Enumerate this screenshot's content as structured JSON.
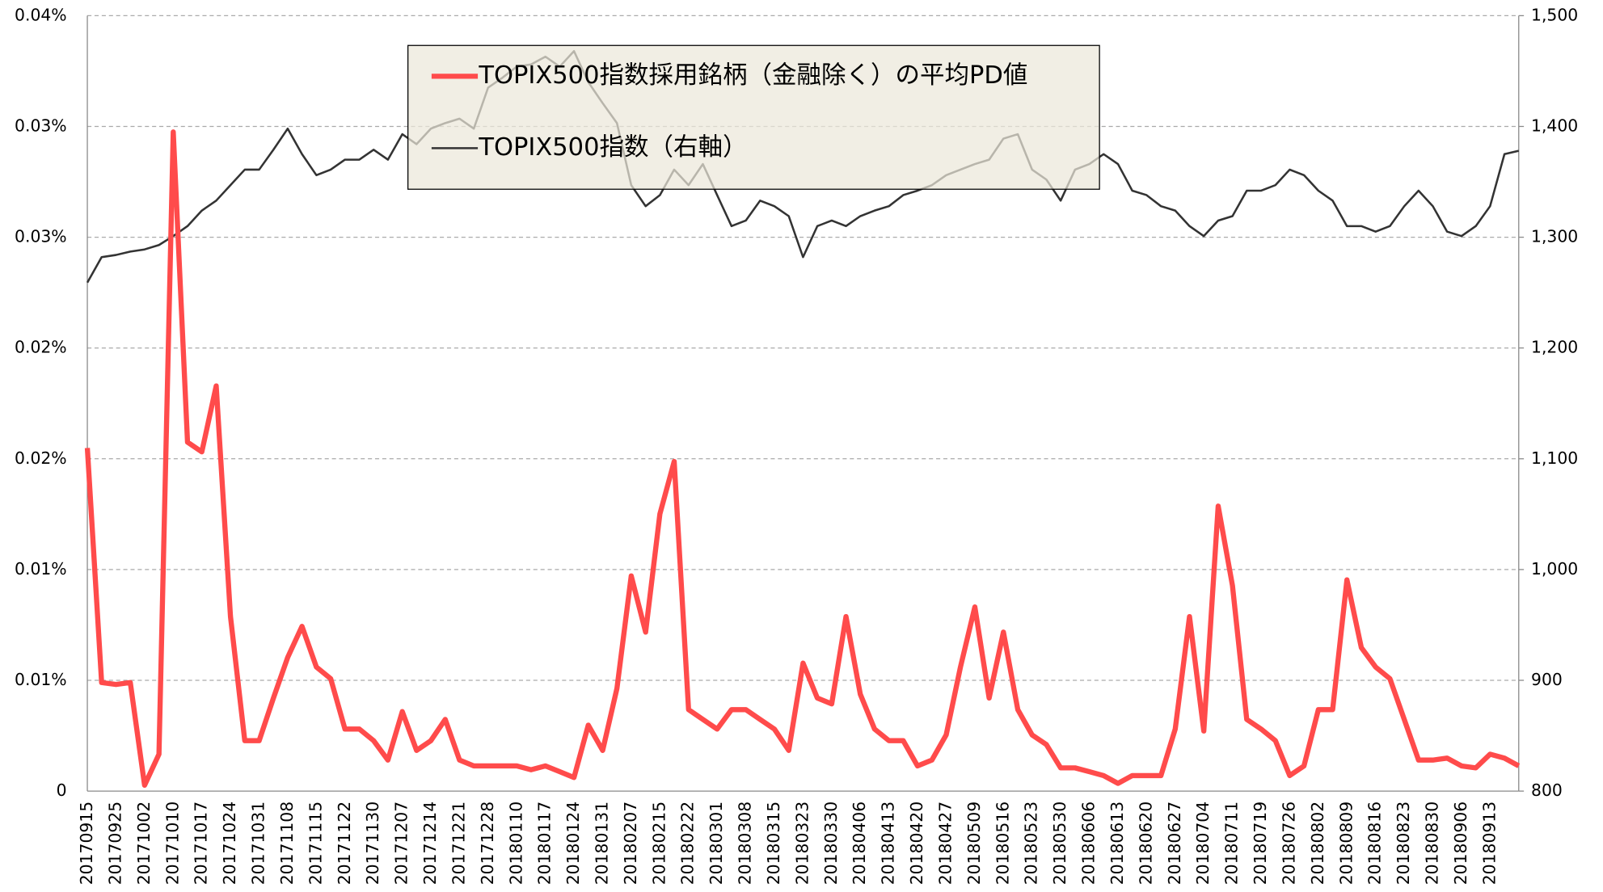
{
  "chart_data": {
    "type": "line",
    "categories": [
      "20170915",
      null,
      "20170925",
      null,
      "20171002",
      null,
      "20171010",
      null,
      "20171017",
      null,
      "20171024",
      null,
      "20171031",
      null,
      "20171108",
      null,
      "20171115",
      null,
      "20171122",
      null,
      "20171130",
      null,
      "20171207",
      null,
      "20171214",
      null,
      "20171221",
      null,
      "20171228",
      null,
      "20180110",
      null,
      "20180117",
      null,
      "20180124",
      null,
      "20180131",
      null,
      "20180207",
      null,
      "20180215",
      null,
      "20180222",
      null,
      "20180301",
      null,
      "20180308",
      null,
      "20180315",
      null,
      "20180323",
      null,
      "20180330",
      null,
      "20180406",
      null,
      "20180413",
      null,
      "20180420",
      null,
      "20180427",
      null,
      "20180509",
      null,
      "20180516",
      null,
      "20180523",
      null,
      "20180530",
      null,
      "20180606",
      null,
      "20180613",
      null,
      "20180620",
      null,
      "20180627",
      null,
      "20180704",
      null,
      "20180711",
      null,
      "20180719",
      null,
      "20180726",
      null,
      "20180802",
      null,
      "20180809",
      null,
      "20180816",
      null,
      "20180823",
      null,
      "20180830",
      null,
      "20180906",
      null,
      "20180913",
      null,
      null
    ],
    "series": [
      {
        "name": "TOPIX500指数採用銘柄（金融除く）の平均PD値",
        "color": "#ff4b4b",
        "width": 5,
        "values": [
          0.0177,
          0.0056,
          0.0055,
          0.0056,
          0.0003,
          0.0019,
          0.034,
          0.018,
          0.0175,
          0.0209,
          0.009,
          0.0026,
          0.0026,
          0.0048,
          0.0069,
          0.0085,
          0.0064,
          0.0058,
          0.0032,
          0.0032,
          0.0026,
          0.0016,
          0.0041,
          0.0021,
          0.0026,
          0.0037,
          0.0016,
          0.0013,
          0.0013,
          0.0013,
          0.0013,
          0.0011,
          0.0013,
          0.001,
          0.0007,
          0.0034,
          0.0021,
          0.0053,
          0.0111,
          0.0082,
          0.0143,
          0.017,
          0.0042,
          0.0037,
          0.0032,
          0.0042,
          0.0042,
          0.0037,
          0.0032,
          0.0021,
          0.0066,
          0.0048,
          0.0045,
          0.009,
          0.005,
          0.0032,
          0.0026,
          0.0026,
          0.0013,
          0.0016,
          0.0029,
          0.0064,
          0.0095,
          0.0048,
          0.0082,
          0.0042,
          0.0029,
          0.0024,
          0.0012,
          0.0012,
          0.001,
          0.0008,
          0.0004,
          0.0008,
          0.0008,
          0.0008,
          0.0032,
          0.009,
          0.0031,
          0.0147,
          0.0106,
          0.0037,
          0.0032,
          0.0026,
          0.0008,
          0.0013,
          0.0042,
          0.0042,
          0.0109,
          0.0074,
          0.0064,
          0.0058,
          0.0037,
          0.0016,
          0.0016,
          0.0017,
          0.0013,
          0.0012,
          0.0019,
          0.0017,
          0.0013
        ]
      },
      {
        "name": "TOPIX500指数（右軸）",
        "color": "#333333",
        "width": 2,
        "axis": "y2",
        "values": [
          1259,
          1282,
          1284,
          1287,
          1289,
          1293,
          1301,
          1310,
          1324,
          1333,
          1347,
          1361,
          1361,
          1379,
          1398,
          1375,
          1356,
          1361,
          1370,
          1370,
          1379,
          1370,
          1393,
          1384,
          1398,
          1403,
          1407,
          1398,
          1435,
          1444,
          1454,
          1456,
          1463,
          1454,
          1468,
          1440,
          1421,
          1403,
          1347,
          1328,
          1338,
          1361,
          1347,
          1366,
          1338,
          1310,
          1315,
          1333,
          1328,
          1319,
          1282,
          1310,
          1315,
          1310,
          1319,
          1324,
          1328,
          1338,
          1342,
          1347,
          1356,
          1361,
          1366,
          1370,
          1389,
          1393,
          1361,
          1352,
          1333,
          1361,
          1366,
          1375,
          1366,
          1342,
          1338,
          1328,
          1324,
          1310,
          1301,
          1315,
          1319,
          1342,
          1342,
          1347,
          1361,
          1356,
          1342,
          1333,
          1310,
          1310,
          1305,
          1310,
          1328,
          1342,
          1328,
          1305,
          1301,
          1310,
          1328,
          1375,
          1378
        ]
      }
    ],
    "ylim": [
      0,
      0.04
    ],
    "yticks": [
      0,
      {
        "value": 0.005714,
        "label": "0.01%"
      },
      {
        "value": 0.011429,
        "label": "0.01%"
      },
      {
        "value": 0.017143,
        "label": "0.02%"
      },
      {
        "value": 0.022857,
        "label": "0.02%"
      },
      {
        "value": 0.028571,
        "label": "0.03%"
      },
      {
        "value": 0.034286,
        "label": "0.03%"
      },
      {
        "value": 0.04,
        "label": "0.04%"
      }
    ],
    "y2lim": [
      800,
      1500
    ],
    "y2ticks": [
      800,
      900,
      {
        "value": 1000,
        "label": "1,000"
      },
      {
        "value": 1100,
        "label": "1,100"
      },
      {
        "value": 1200,
        "label": "1,200"
      },
      {
        "value": 1300,
        "label": "1,300"
      },
      {
        "value": 1400,
        "label": "1,400"
      },
      {
        "value": 1500,
        "label": "1,500"
      }
    ],
    "grid": true
  }
}
